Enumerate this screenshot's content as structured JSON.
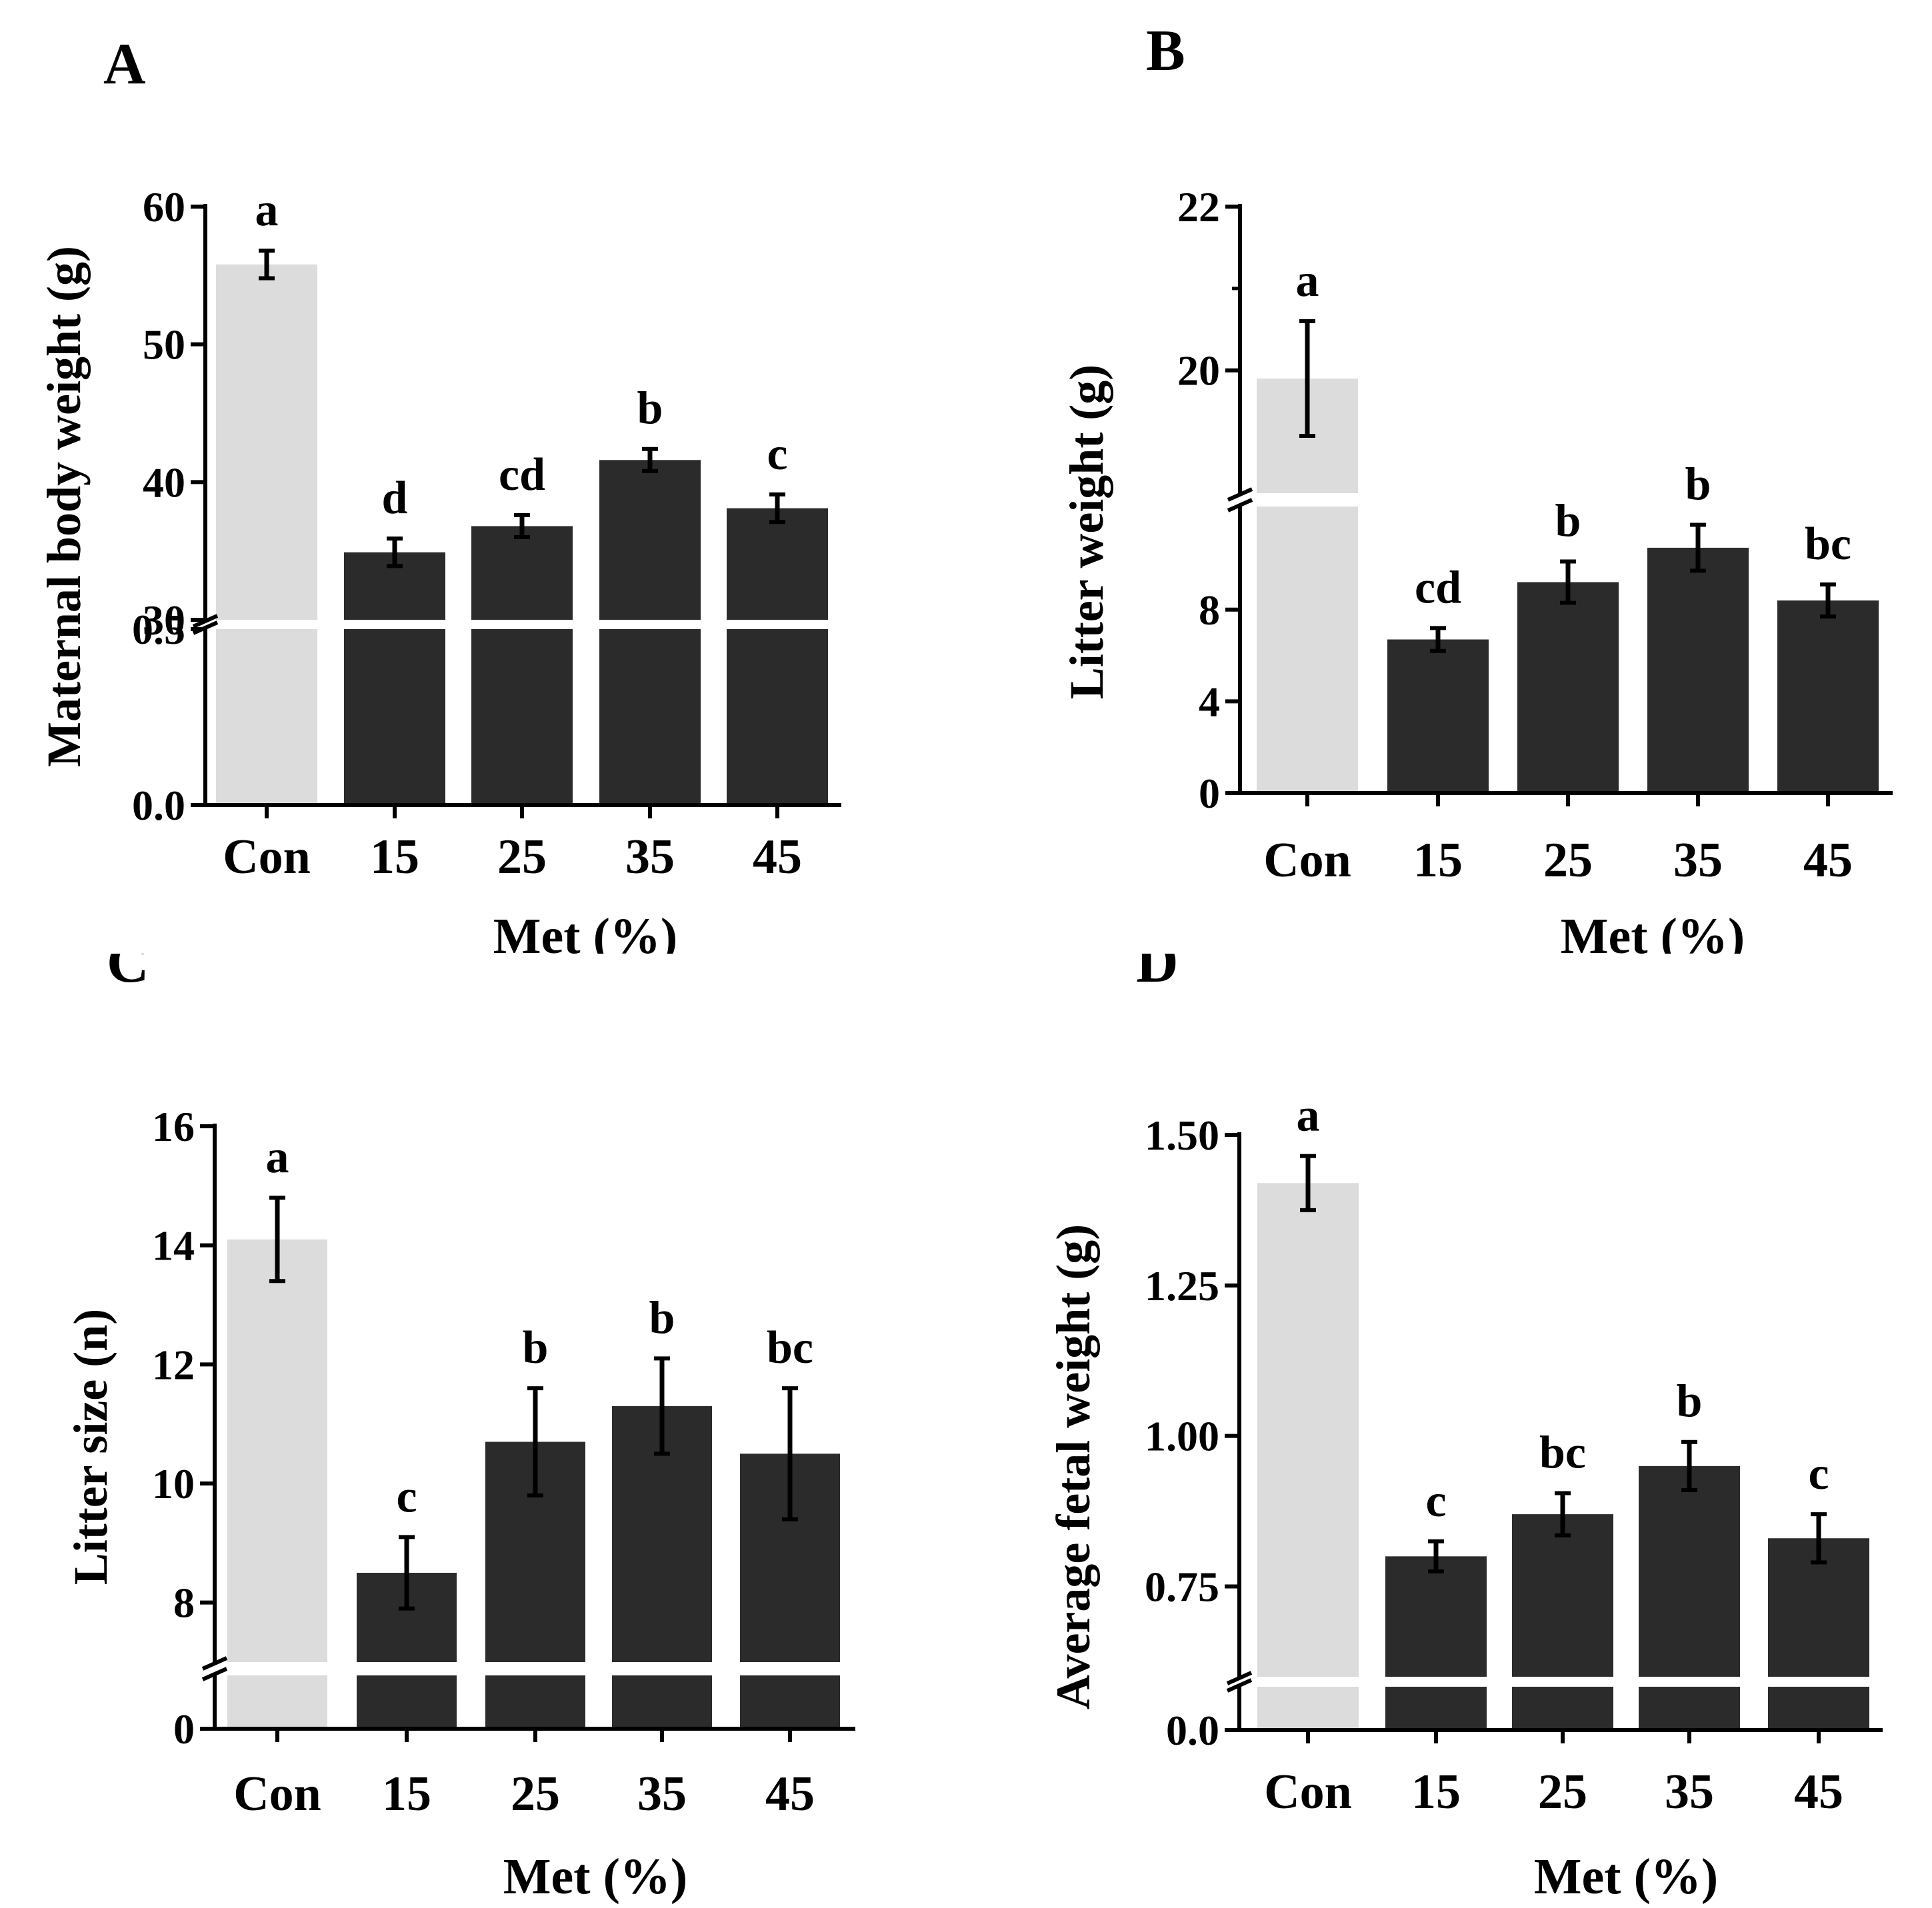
{
  "x_categories": [
    "Con",
    "15",
    "25",
    "35",
    "45"
  ],
  "colors": {
    "control": "#dcdcdc",
    "treatment": "#2b2b2b"
  },
  "chart_data": [
    {
      "type": "bar",
      "panel": "A",
      "xlabel": "Met (%)",
      "ylabel": "Maternal body weight (g)",
      "categories": [
        "Con",
        "15",
        "25",
        "35",
        "45"
      ],
      "values": [
        55.8,
        34.9,
        36.8,
        41.6,
        38.1
      ],
      "errors": [
        1.0,
        1.0,
        0.8,
        0.8,
        1.0
      ],
      "significance": [
        "a",
        "d",
        "cd",
        "b",
        "c"
      ],
      "axis_break": {
        "lower": [
          0,
          0.5
        ],
        "upper": [
          30,
          60
        ]
      },
      "ticks_lower": [
        "0.0",
        "0.5"
      ],
      "ticks_upper": [
        "30",
        "40",
        "50",
        "60"
      ]
    },
    {
      "type": "bar",
      "panel": "B",
      "xlabel": "Met (%)",
      "ylabel": "Litter weight (g)",
      "categories": [
        "Con",
        "15",
        "25",
        "35",
        "45"
      ],
      "values": [
        19.9,
        6.7,
        9.2,
        10.7,
        8.4
      ],
      "errors": [
        0.7,
        0.5,
        0.9,
        1.0,
        0.7
      ],
      "significance": [
        "a",
        "cd",
        "b",
        "b",
        "bc"
      ],
      "axis_break": {
        "lower": [
          0,
          12.5
        ],
        "upper": [
          18.5,
          22
        ]
      },
      "ticks_lower": [
        "0",
        "4",
        "8"
      ],
      "ticks_upper": [
        "20",
        "22"
      ]
    },
    {
      "type": "bar",
      "panel": "C",
      "xlabel": "Met (%)",
      "ylabel": "Litter size (n)",
      "categories": [
        "Con",
        "15",
        "25",
        "35",
        "45"
      ],
      "values": [
        14.1,
        8.5,
        10.7,
        11.3,
        10.5
      ],
      "errors": [
        0.7,
        0.6,
        0.9,
        0.8,
        1.1
      ],
      "significance": [
        "a",
        "c",
        "b",
        "b",
        "bc"
      ],
      "axis_break": {
        "lower": [
          0,
          1
        ],
        "upper": [
          7,
          16
        ]
      },
      "ticks_lower": [
        "0"
      ],
      "ticks_upper": [
        "8",
        "10",
        "12",
        "14",
        "16"
      ]
    },
    {
      "type": "bar",
      "panel": "D",
      "xlabel": "Met (%)",
      "ylabel": "Average fetal weight (g)",
      "categories": [
        "Con",
        "15",
        "25",
        "35",
        "45"
      ],
      "values": [
        1.42,
        0.8,
        0.87,
        0.95,
        0.83
      ],
      "errors": [
        0.045,
        0.025,
        0.035,
        0.04,
        0.04
      ],
      "significance": [
        "a",
        "c",
        "bc",
        "b",
        "c"
      ],
      "axis_break": {
        "lower": [
          0,
          0.1
        ],
        "upper": [
          0.6,
          1.5
        ]
      },
      "ticks_lower": [
        "0.0"
      ],
      "ticks_upper": [
        "0.75",
        "1.00",
        "1.25",
        "1.50"
      ]
    }
  ]
}
